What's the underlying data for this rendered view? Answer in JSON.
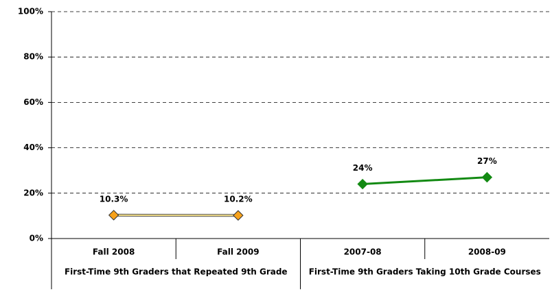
{
  "chart_data": {
    "type": "line",
    "categories": [
      "Fall 2008",
      "Fall 2009",
      "2007-08",
      "2008-09"
    ],
    "groups": [
      "First-Time 9th Graders that Repeated 9th Grade",
      "First-Time 9th Graders Taking 10th Grade Courses"
    ],
    "series": [
      {
        "color": "#f7a21b",
        "line_color": "#f5e08a",
        "values": [
          10.3,
          10.2,
          null,
          null
        ],
        "value_labels": [
          "10.3%",
          "10.2%",
          null,
          null
        ]
      },
      {
        "color": "#138a13",
        "line_color": "#138a13",
        "values": [
          null,
          null,
          24,
          27
        ],
        "value_labels": [
          null,
          null,
          "24%",
          "27%"
        ]
      }
    ],
    "ylim": [
      0,
      100
    ],
    "yticks": [
      {
        "value": 0,
        "label": "0%"
      },
      {
        "value": 20,
        "label": "20%"
      },
      {
        "value": 40,
        "label": "40%"
      },
      {
        "value": 60,
        "label": "60%"
      },
      {
        "value": 80,
        "label": "80%"
      },
      {
        "value": 100,
        "label": "100%"
      }
    ],
    "grid": true
  }
}
